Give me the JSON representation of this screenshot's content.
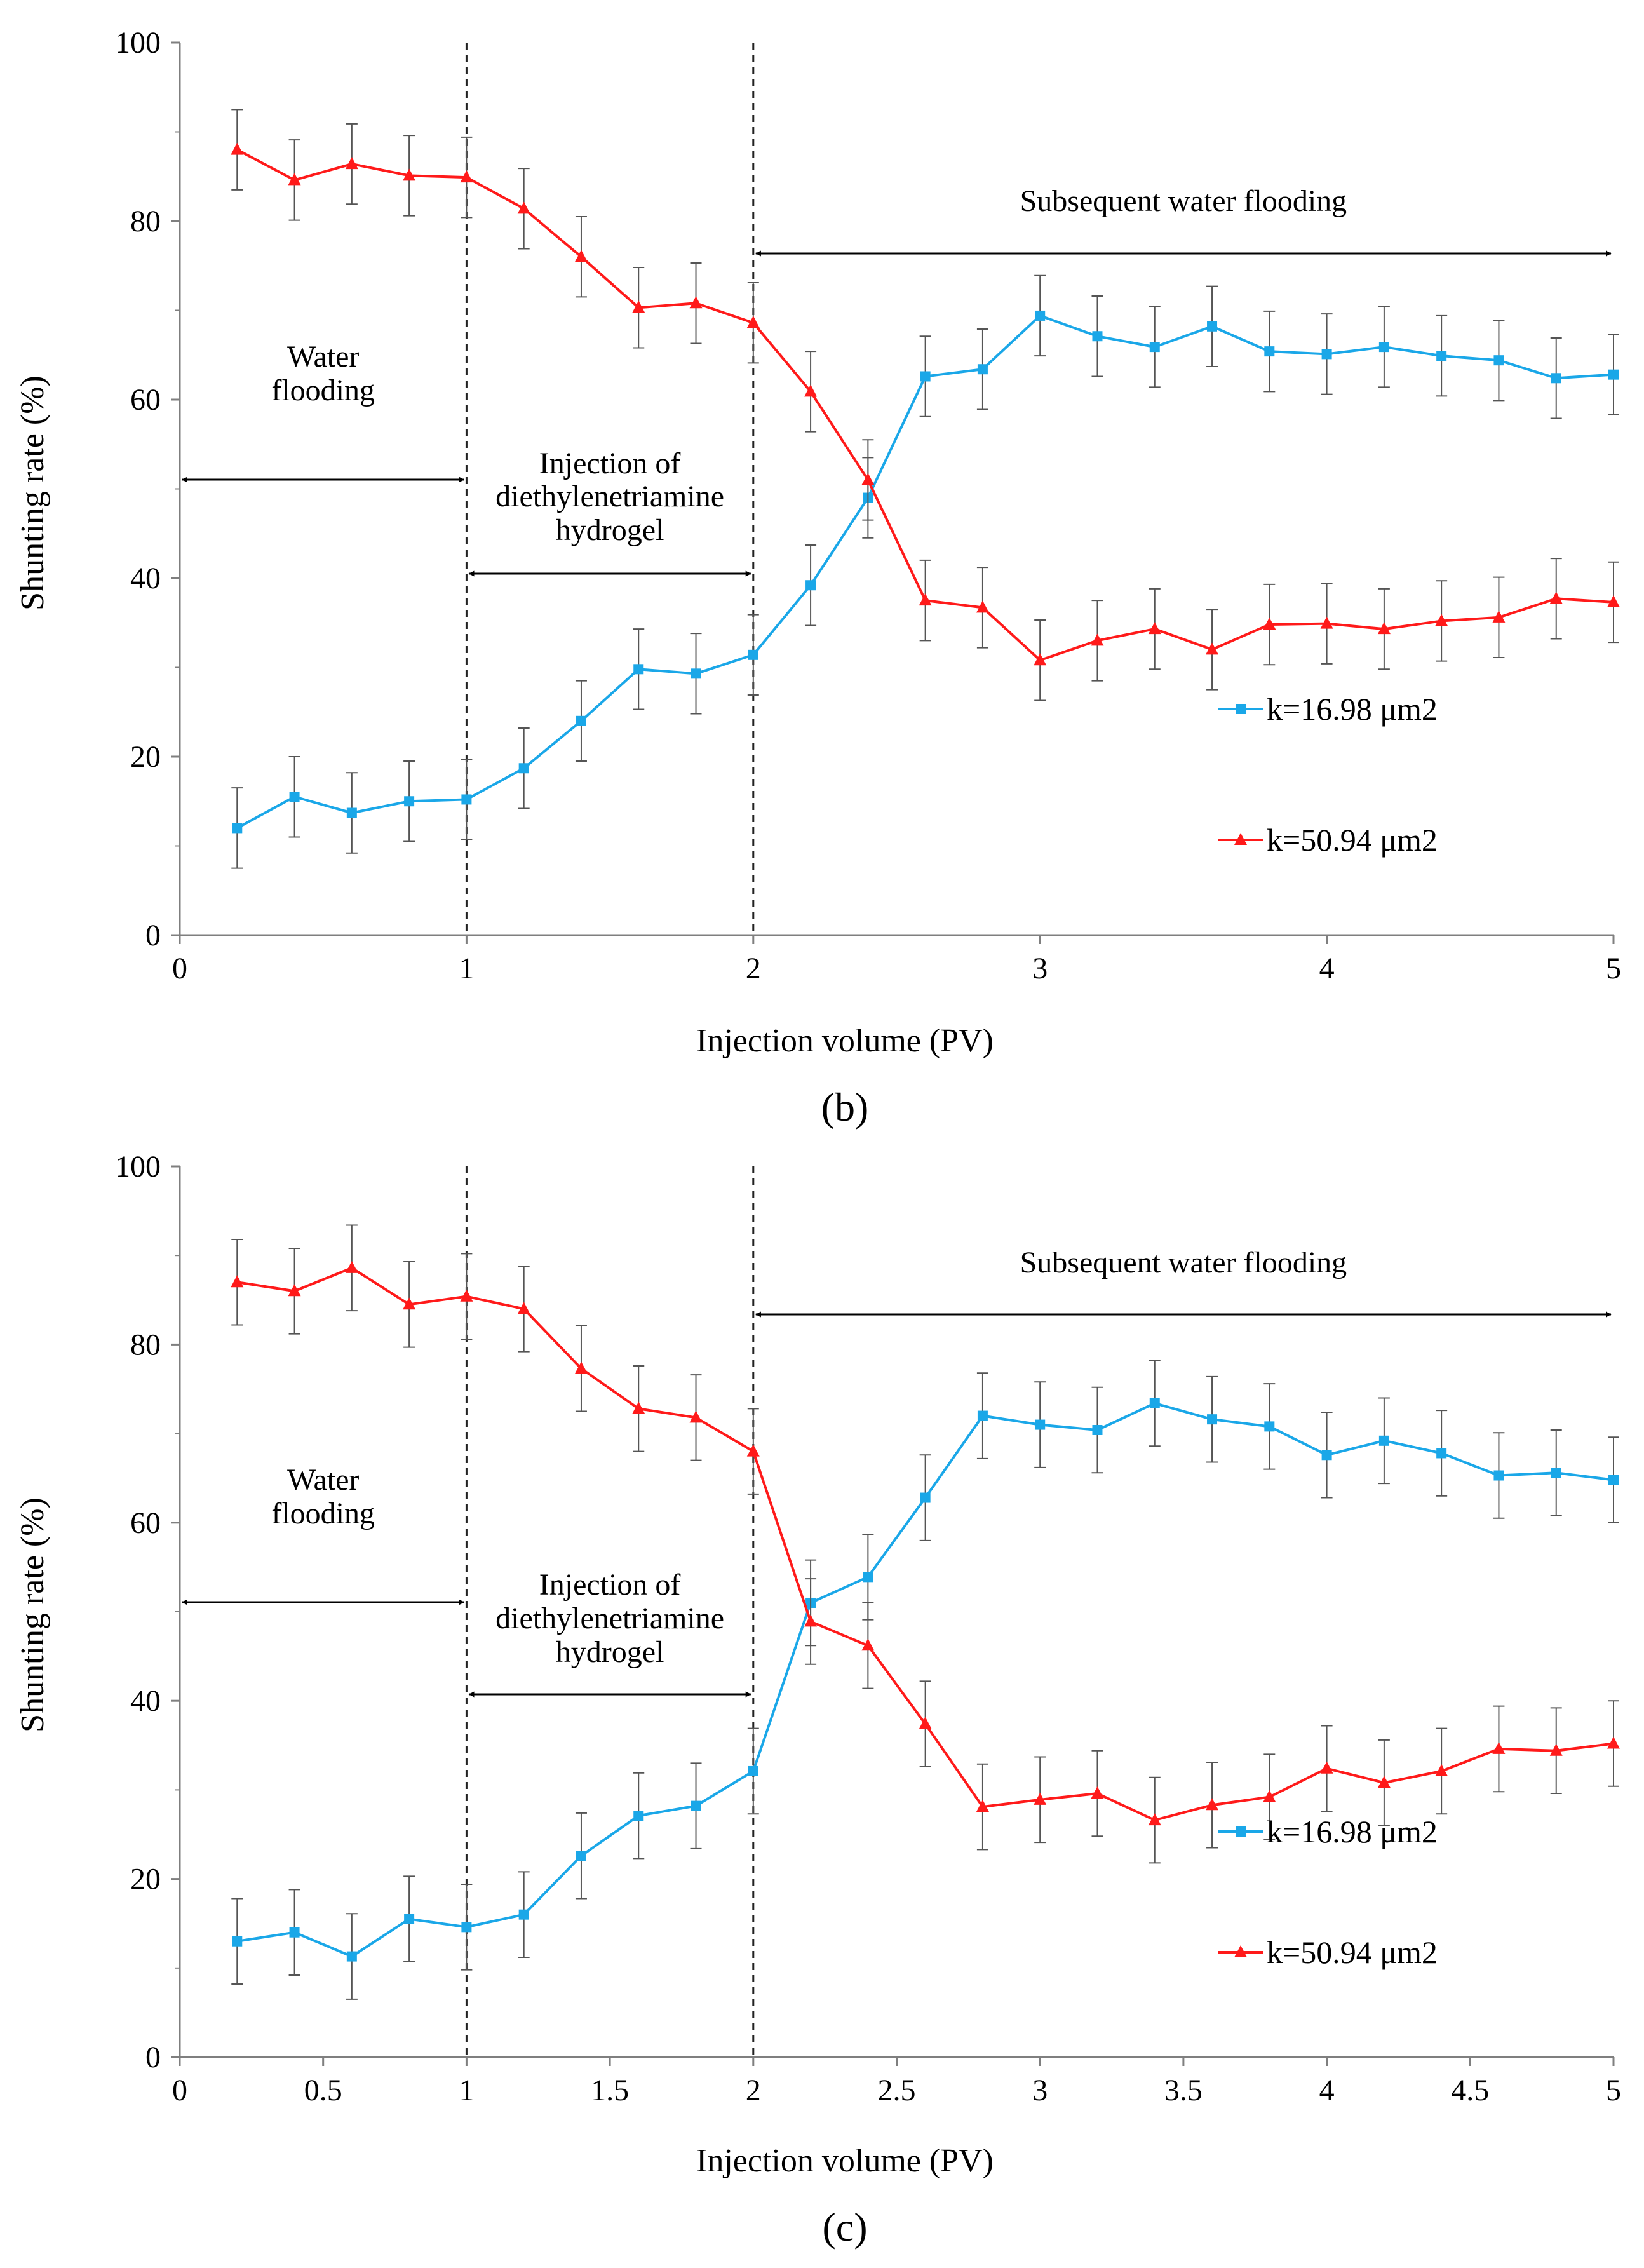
{
  "chart_data": [
    {
      "type": "line",
      "panel_label": "(b)",
      "xlabel": "Injection volume (PV)",
      "ylabel": "Shunting rate (%)",
      "xlim": [
        0,
        5
      ],
      "ylim": [
        0,
        100
      ],
      "x_ticks": [
        "0",
        "1",
        "2",
        "3",
        "4",
        "5"
      ],
      "y_ticks": [
        "0",
        "20",
        "40",
        "60",
        "80",
        "100"
      ],
      "x": [
        0.2,
        0.4,
        0.6,
        0.8,
        1.0,
        1.2,
        1.4,
        1.6,
        1.8,
        2.0,
        2.2,
        2.4,
        2.6,
        2.8,
        3.0,
        3.2,
        3.4,
        3.6,
        3.8,
        4.0,
        4.2,
        4.4,
        4.6,
        4.8,
        5.0
      ],
      "error_bar": 4.5,
      "series": [
        {
          "name": "k=16.98 μm2",
          "color": "#1aa7e8",
          "marker": "square",
          "values": [
            12.0,
            15.5,
            13.7,
            15.0,
            15.2,
            18.7,
            24.0,
            29.8,
            29.3,
            31.4,
            39.2,
            49.0,
            62.6,
            63.4,
            69.4,
            67.1,
            65.9,
            68.2,
            65.4,
            65.1,
            65.9,
            64.9,
            64.4,
            62.4,
            62.8
          ]
        },
        {
          "name": "k=50.94 μm2",
          "color": "#ff1a1a",
          "marker": "triangle",
          "values": [
            88.0,
            84.6,
            86.4,
            85.1,
            84.9,
            81.4,
            76.0,
            70.3,
            70.8,
            68.6,
            60.9,
            51.0,
            37.5,
            36.7,
            30.8,
            33.0,
            34.3,
            32.0,
            34.8,
            34.9,
            34.3,
            35.2,
            35.6,
            37.7,
            37.3
          ]
        }
      ],
      "vlines": [
        1,
        2
      ],
      "annotations": [
        {
          "lines": [
            "Water",
            "flooding"
          ],
          "range": [
            0,
            1
          ]
        },
        {
          "lines": [
            "Injection of",
            "diethylenetriamine",
            "hydrogel"
          ],
          "range": [
            1,
            2
          ]
        },
        {
          "lines": [
            "Subsequent water flooding"
          ],
          "range": [
            2,
            5
          ]
        }
      ],
      "grid": false,
      "legend_position": "lower-right"
    },
    {
      "type": "line",
      "panel_label": "(c)",
      "xlabel": "Injection volume (PV)",
      "ylabel": "Shunting rate (%)",
      "xlim": [
        0,
        5
      ],
      "ylim": [
        0,
        100
      ],
      "x_ticks": [
        "0",
        "0.5",
        "1",
        "1.5",
        "2",
        "2.5",
        "3",
        "3.5",
        "4",
        "4.5",
        "5"
      ],
      "y_ticks": [
        "0",
        "20",
        "40",
        "60",
        "80",
        "100"
      ],
      "x": [
        0.2,
        0.4,
        0.6,
        0.8,
        1.0,
        1.2,
        1.4,
        1.6,
        1.8,
        2.0,
        2.2,
        2.4,
        2.6,
        2.8,
        3.0,
        3.2,
        3.4,
        3.6,
        3.8,
        4.0,
        4.2,
        4.4,
        4.6,
        4.8,
        5.0
      ],
      "error_bar": 4.8,
      "series": [
        {
          "name": "k=16.98 μm2",
          "color": "#1aa7e8",
          "marker": "square",
          "values": [
            13.0,
            14.0,
            11.3,
            15.5,
            14.6,
            16.0,
            22.6,
            27.1,
            28.2,
            32.1,
            51.0,
            53.9,
            62.8,
            72.0,
            71.0,
            70.4,
            73.4,
            71.6,
            70.8,
            67.6,
            69.2,
            67.8,
            65.3,
            65.6,
            64.8
          ]
        },
        {
          "name": "k=50.94 μm2",
          "color": "#ff1a1a",
          "marker": "triangle",
          "values": [
            87.0,
            86.0,
            88.6,
            84.5,
            85.4,
            84.0,
            77.3,
            72.8,
            71.8,
            68.0,
            48.9,
            46.2,
            37.4,
            28.1,
            28.9,
            29.6,
            26.6,
            28.3,
            29.2,
            32.4,
            30.8,
            32.1,
            34.6,
            34.4,
            35.2
          ]
        }
      ],
      "vlines": [
        1,
        2
      ],
      "annotations": [
        {
          "lines": [
            "Water",
            "flooding"
          ],
          "range": [
            0,
            1
          ]
        },
        {
          "lines": [
            "Injection of",
            "diethylenetriamine",
            "hydrogel"
          ],
          "range": [
            1,
            2
          ]
        },
        {
          "lines": [
            "Subsequent water flooding"
          ],
          "range": [
            2,
            5
          ]
        }
      ],
      "grid": false,
      "legend_position": "lower-right"
    }
  ]
}
